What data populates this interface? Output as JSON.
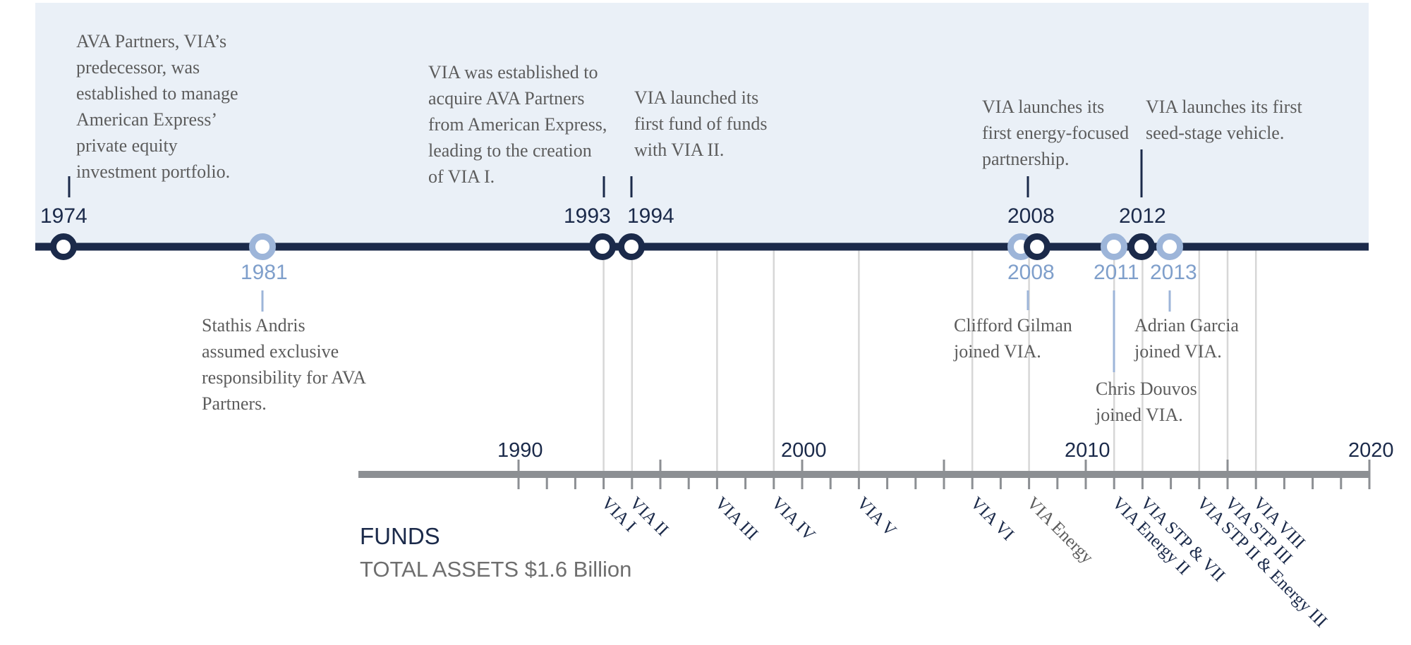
{
  "colors": {
    "navy": "#1b2a4a",
    "light_blue": "#9db5d9",
    "year_blue": "#7f9fcb",
    "band": "#eaf0f7",
    "axis_gray": "#8c8f93",
    "guide_gray": "#d7d7d7",
    "text_gray": "#5c5c5c"
  },
  "top_events": [
    {
      "year": "1974",
      "text": [
        "AVA Partners, VIA’s",
        "predecessor, was",
        "established to manage",
        "American Express’",
        "private equity",
        "investment portfolio."
      ]
    },
    {
      "year": "1993",
      "text": [
        "VIA was established to",
        "acquire AVA Partners",
        "from American Express,",
        "leading to the creation",
        "of VIA I."
      ]
    },
    {
      "year": "1994",
      "text": [
        "VIA launched its",
        "first fund of funds",
        "with VIA II."
      ]
    },
    {
      "year": "2008",
      "text": [
        "VIA launches its",
        "first energy-focused",
        "partnership."
      ]
    },
    {
      "year": "2012",
      "text": [
        "VIA launches its first",
        "seed-stage vehicle."
      ]
    }
  ],
  "bottom_events": [
    {
      "year": "1981",
      "text": [
        "Stathis Andris",
        "assumed exclusive",
        "responsibility for AVA",
        "Partners."
      ]
    },
    {
      "year": "2008",
      "text": [
        "Clifford Gilman",
        "joined VIA."
      ]
    },
    {
      "year": "2011",
      "text": [
        "Chris Douvos",
        "joined VIA."
      ]
    },
    {
      "year": "2013",
      "text": [
        "Adrian Garcia",
        "joined VIA."
      ]
    }
  ],
  "axis": {
    "labels": [
      "1990",
      "2000",
      "2010",
      "2020"
    ]
  },
  "funds": [
    {
      "name": "VIA I",
      "year": 1993
    },
    {
      "name": "VIA II",
      "year": 1994
    },
    {
      "name": "VIA III",
      "year": 1997
    },
    {
      "name": "VIA IV",
      "year": 1999
    },
    {
      "name": "VIA V",
      "year": 2002
    },
    {
      "name": "VIA VI",
      "year": 2006
    },
    {
      "name": "VIA Energy",
      "year": 2008
    },
    {
      "name": "VIA Energy II",
      "year": 2011
    },
    {
      "name": "VIA STP & VII",
      "year": 2012
    },
    {
      "name": "VIA STP II & Energy III",
      "year": 2014
    },
    {
      "name": "VIA STP III",
      "year": 2015
    },
    {
      "name": "VIA VIII",
      "year": 2016
    }
  ],
  "summary": {
    "title": "FUNDS",
    "total_assets": "TOTAL ASSETS $1.6 Billion"
  }
}
